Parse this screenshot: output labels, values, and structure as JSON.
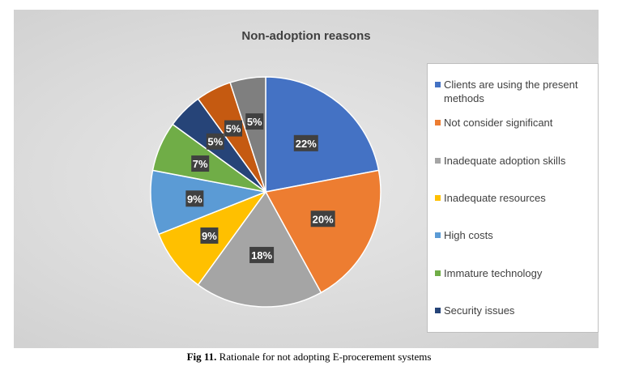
{
  "chart_data": {
    "type": "pie",
    "title": "Non-adoption reasons",
    "slices": [
      {
        "label": "Clients are using the present methods",
        "value": 22,
        "display": "22%",
        "color": "#4472C4"
      },
      {
        "label": "Not consider significant",
        "value": 20,
        "display": "20%",
        "color": "#ED7D31"
      },
      {
        "label": "Inadequate adoption skills",
        "value": 18,
        "display": "18%",
        "color": "#A5A5A5"
      },
      {
        "label": "Inadequate resources",
        "value": 9,
        "display": "9%",
        "color": "#FFC000"
      },
      {
        "label": "High costs",
        "value": 9,
        "display": "9%",
        "color": "#5B9BD5"
      },
      {
        "label": "Immature technology",
        "value": 7,
        "display": "7%",
        "color": "#70AD47"
      },
      {
        "label": "Security issues",
        "value": 5,
        "display": "5%",
        "color": "#264478"
      },
      {
        "label": "",
        "value": 5,
        "display": "5%",
        "color": "#C55A11"
      },
      {
        "label": "",
        "value": 5,
        "display": "5%",
        "color": "#7F7F7F"
      }
    ],
    "legend_position": "right"
  },
  "caption": {
    "fig": "Fig 11.",
    "text": " Rationale for not adopting E-procerement systems"
  }
}
